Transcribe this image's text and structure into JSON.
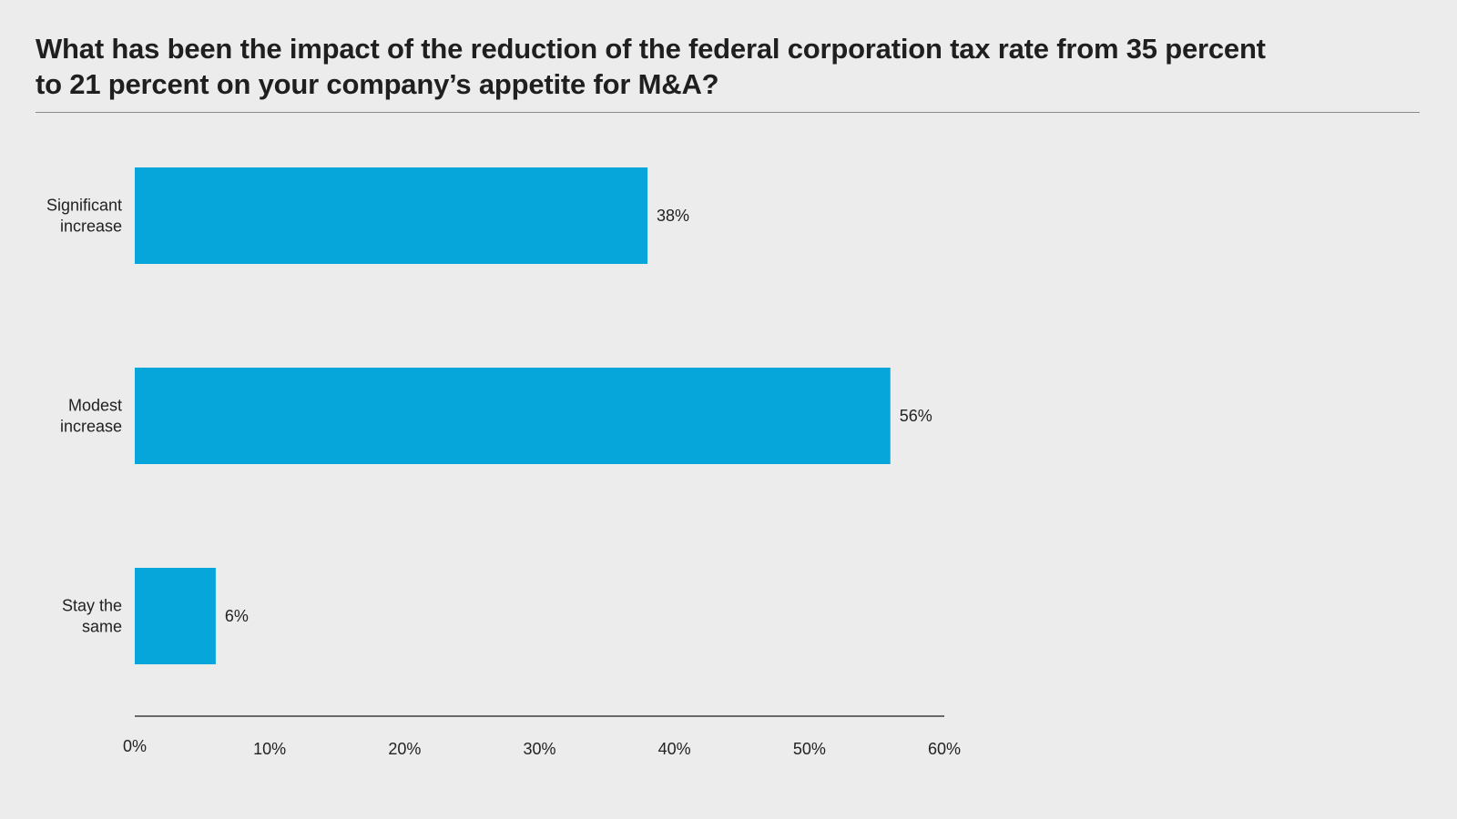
{
  "chart_data": {
    "type": "bar",
    "orientation": "horizontal",
    "title": "What has been the impact of the reduction of the federal corporation tax rate from 35 percent to 21 percent on your company’s appetite for M&A?",
    "title_lines": [
      "What has been the impact of the reduction of the federal corporation tax rate from 35 percent",
      "to 21 percent on your company’s appetite for M&A?"
    ],
    "categories": [
      [
        "Significant",
        "increase"
      ],
      [
        "Modest",
        "increase"
      ],
      [
        "Stay the",
        "same"
      ]
    ],
    "values": [
      38,
      56,
      6
    ],
    "data_labels": [
      "38%",
      "56%",
      "6%"
    ],
    "xlim": [
      0,
      60
    ],
    "xticks": [
      0,
      10,
      20,
      30,
      40,
      50,
      60
    ],
    "xtick_labels": [
      "0%",
      "10%",
      "20%",
      "30%",
      "40%",
      "50%",
      "60%"
    ],
    "xlabel": "",
    "ylabel": "",
    "grid": false,
    "bar_color": "#06a5da",
    "legend": null
  }
}
